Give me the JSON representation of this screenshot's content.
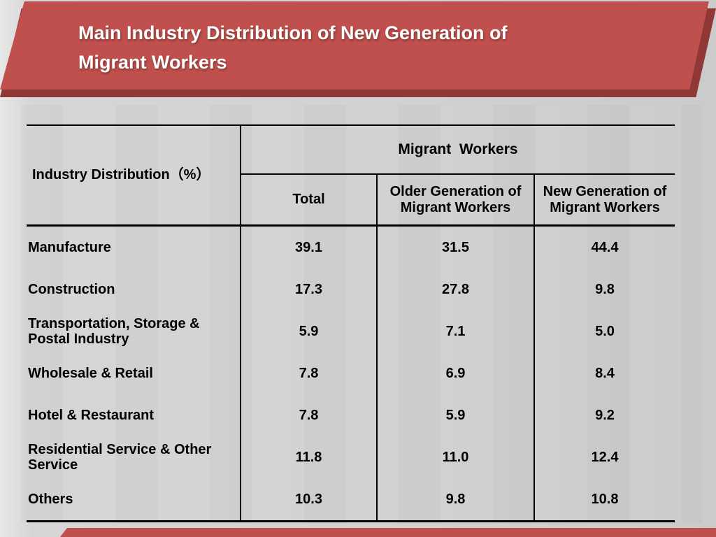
{
  "slide": {
    "title": "Main Industry Distribution of New Generation of Migrant Workers",
    "title_lines": [
      "Main Industry Distribution of New Generation of",
      "Migrant Workers"
    ]
  },
  "table": {
    "corner_header": "Industry Distribution（%）",
    "group_header": "Migrant  Workers",
    "columns": [
      "Total",
      "Older Generation of Migrant Workers",
      "New Generation of Migrant Workers"
    ],
    "rows": [
      {
        "label": "Manufacture",
        "values": [
          "39.1",
          "31.5",
          "44.4"
        ]
      },
      {
        "label": "Construction",
        "values": [
          "17.3",
          "27.8",
          "9.8"
        ]
      },
      {
        "label": "Transportation, Storage & Postal Industry",
        "values": [
          "5.9",
          "7.1",
          "5.0"
        ]
      },
      {
        "label": "Wholesale & Retail",
        "values": [
          "7.8",
          "6.9",
          "8.4"
        ]
      },
      {
        "label": "Hotel & Restaurant",
        "values": [
          "7.8",
          "5.9",
          "9.2"
        ]
      },
      {
        "label": "Residential Service & Other Service",
        "values": [
          "11.8",
          "11.0",
          "12.4"
        ]
      },
      {
        "label": "Others",
        "values": [
          "10.3",
          "9.8",
          "10.8"
        ]
      }
    ]
  },
  "colors": {
    "banner_red": "#c0504d",
    "banner_shadow_red": "#8f3836",
    "accent_bar_red": "#c0504d",
    "background_gray": "#d1d1d1",
    "table_line_black": "#000000",
    "title_text": "#ffffff"
  },
  "chart_data": {
    "type": "table",
    "title": "Main Industry Distribution of New Generation of Migrant Workers",
    "row_header": "Industry Distribution (%)",
    "column_group": "Migrant Workers",
    "columns": [
      "Total",
      "Older Generation of Migrant Workers",
      "New Generation of Migrant Workers"
    ],
    "rows": [
      "Manufacture",
      "Construction",
      "Transportation, Storage & Postal Industry",
      "Wholesale & Retail",
      "Hotel & Restaurant",
      "Residential Service & Other Service",
      "Others"
    ],
    "values": [
      [
        39.1,
        31.5,
        44.4
      ],
      [
        17.3,
        27.8,
        9.8
      ],
      [
        5.9,
        7.1,
        5.0
      ],
      [
        7.8,
        6.9,
        8.4
      ],
      [
        7.8,
        5.9,
        9.2
      ],
      [
        11.8,
        11.0,
        12.4
      ],
      [
        10.3,
        9.8,
        10.8
      ]
    ]
  }
}
